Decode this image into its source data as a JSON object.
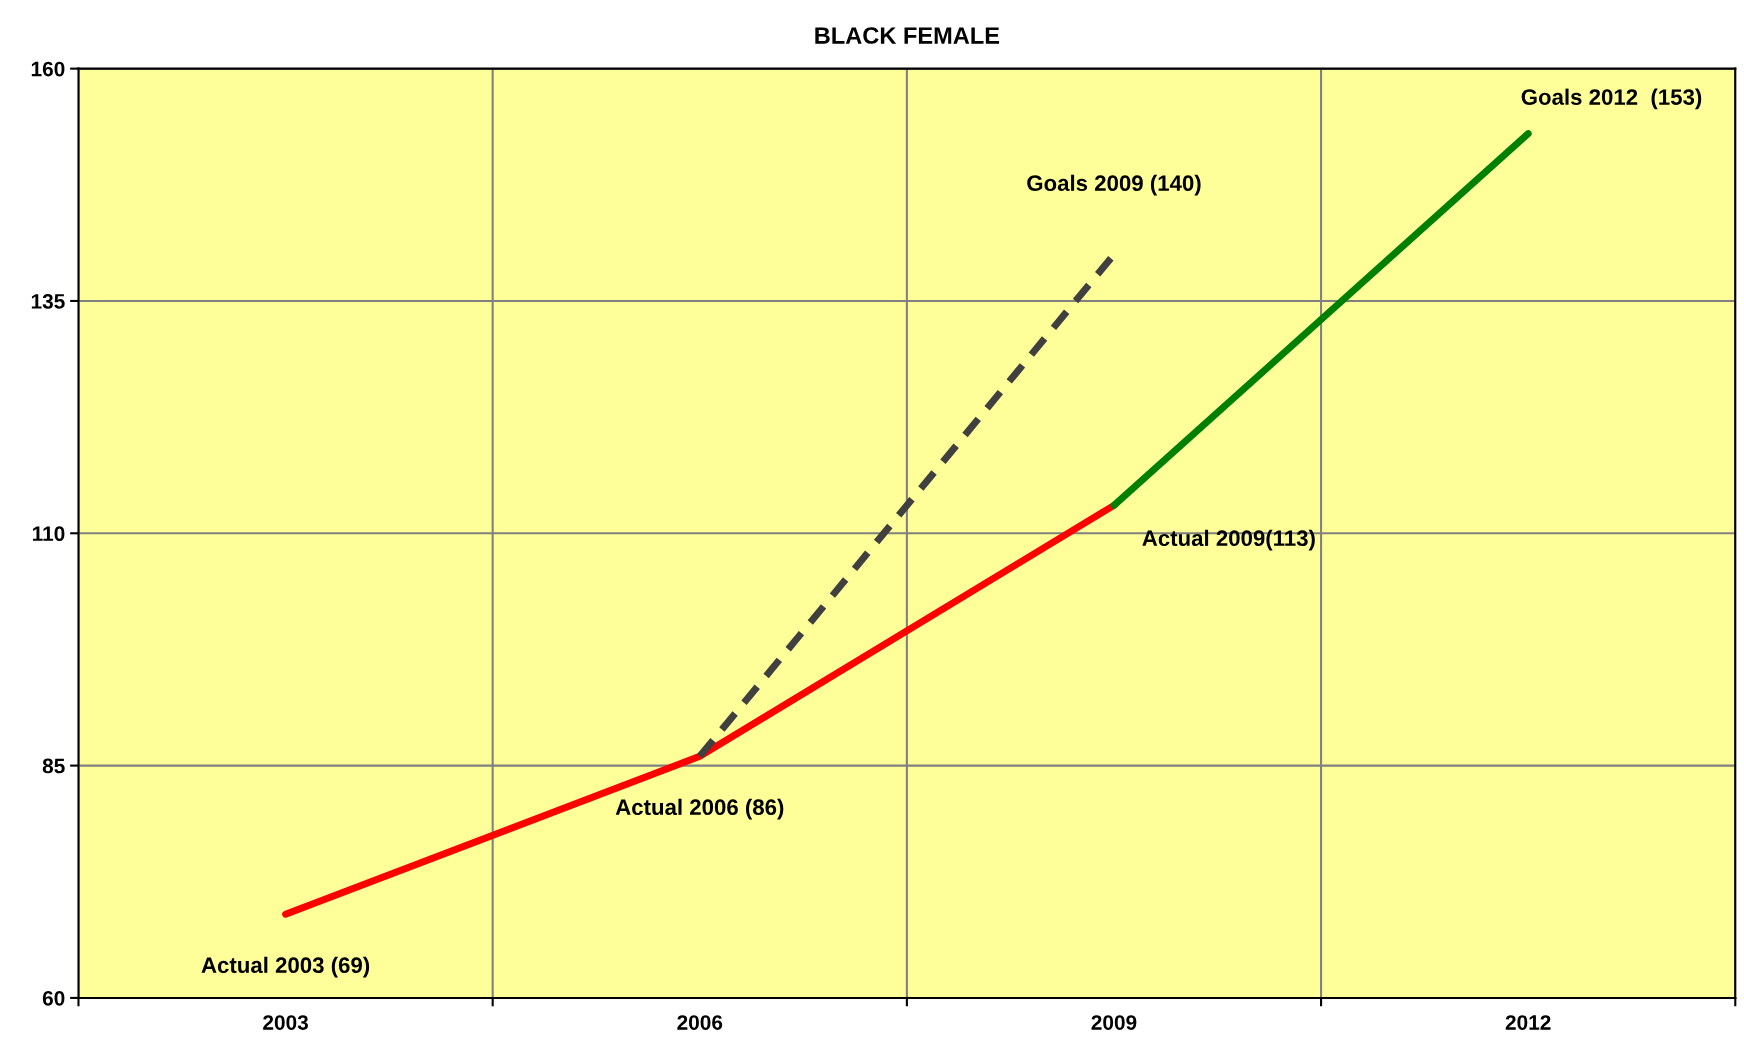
{
  "chart_data": {
    "type": "line",
    "title": "BLACK FEMALE",
    "categories": [
      "2003",
      "2006",
      "2009",
      "2012"
    ],
    "series": [
      {
        "color": "#ff0000",
        "values": [
          69,
          86,
          113,
          null
        ],
        "line_style": "solid"
      },
      {
        "color": "#404040",
        "values": [
          null,
          86,
          140,
          null
        ],
        "line_style": "dashed"
      },
      {
        "color": "#008000",
        "values": [
          null,
          null,
          113,
          153
        ],
        "line_style": "solid"
      }
    ],
    "ylim": [
      60,
      160
    ],
    "yticks": [
      60,
      85,
      110,
      135,
      160
    ],
    "grid": true,
    "marker": "none",
    "annotations": [
      {
        "text": "Actual 2003 (69)",
        "x": "2003",
        "y": 69
      },
      {
        "text": "Actual 2006 (86)",
        "x": "2006",
        "y": 86
      },
      {
        "text": "Actual 2009(113)",
        "x": "2009",
        "y": 113
      },
      {
        "text": "Goals 2009 (140)",
        "x": "2009",
        "y": 140
      },
      {
        "text": "Goals 2012  (153)",
        "x": "2012",
        "y": 153
      }
    ]
  }
}
